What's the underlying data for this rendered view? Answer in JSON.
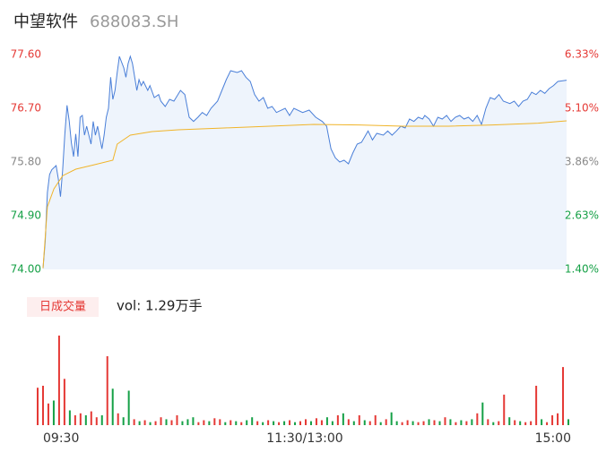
{
  "chart_data": {
    "type": "intraday",
    "title": "中望软件",
    "subtitle": "688083.SH",
    "xlim": [
      0,
      240
    ],
    "xticks": [
      {
        "value": 0,
        "label": "09:30"
      },
      {
        "value": 120,
        "label": "11:30/13:00"
      },
      {
        "value": 240,
        "label": "15:00"
      }
    ],
    "ylim": [
      74.0,
      77.6
    ],
    "yticks": [
      {
        "value": 74.0,
        "label": "74.00"
      },
      {
        "value": 74.9,
        "label": "74.90"
      },
      {
        "value": 75.8,
        "label": "75.80"
      },
      {
        "value": 76.7,
        "label": "76.70"
      },
      {
        "value": 77.6,
        "label": "77.60"
      }
    ],
    "y2lim": [
      1.4,
      6.33
    ],
    "y2ticks": [
      {
        "value": 1.4,
        "label": "1.40%"
      },
      {
        "value": 2.63,
        "label": "2.63%"
      },
      {
        "value": 3.86,
        "label": "3.86%"
      },
      {
        "value": 5.1,
        "label": "5.10%"
      },
      {
        "value": 6.33,
        "label": "6.33%"
      }
    ],
    "up_color": "#e53935",
    "down_color": "#15a046",
    "flat_color": "#888888",
    "series": [
      {
        "color": "#4a7fd8",
        "x": [
          0,
          1,
          2,
          3,
          4,
          6,
          7,
          8,
          9,
          10,
          11,
          12,
          13,
          14,
          15,
          16,
          17,
          18,
          19,
          20,
          22,
          23,
          24,
          25,
          27,
          28,
          29,
          30,
          31,
          32,
          33,
          34,
          35,
          37,
          38,
          39,
          40,
          41,
          43,
          44,
          45,
          46,
          48,
          49,
          51,
          53,
          54,
          56,
          58,
          60,
          63,
          65,
          67,
          69,
          71,
          73,
          75,
          77,
          80,
          82,
          84,
          86,
          89,
          91,
          93,
          95,
          97,
          99,
          101,
          103,
          105,
          107,
          111,
          113,
          115,
          119,
          122,
          125,
          128,
          130,
          132,
          134,
          136,
          138,
          140,
          142,
          144,
          146,
          149,
          151,
          153,
          156,
          158,
          160,
          162,
          164,
          166,
          168,
          170,
          172,
          174,
          175,
          177,
          179,
          181,
          183,
          185,
          187,
          189,
          191,
          193,
          195,
          197,
          199,
          201,
          203,
          205,
          207,
          209,
          211,
          214,
          216,
          218,
          220,
          222,
          224,
          226,
          228,
          230,
          232,
          234,
          236,
          240
        ],
        "values": [
          74.02,
          74.47,
          75.29,
          75.59,
          75.67,
          75.74,
          75.52,
          75.22,
          75.67,
          76.27,
          76.75,
          76.49,
          76.12,
          75.89,
          76.27,
          75.89,
          76.55,
          76.58,
          76.25,
          76.4,
          76.1,
          76.48,
          76.25,
          76.4,
          76.02,
          76.25,
          76.55,
          76.7,
          77.22,
          76.85,
          77.0,
          77.3,
          77.57,
          77.38,
          77.22,
          77.45,
          77.57,
          77.45,
          77.0,
          77.18,
          77.08,
          77.15,
          77.0,
          77.08,
          76.88,
          76.93,
          76.82,
          76.73,
          76.85,
          76.82,
          77.0,
          76.93,
          76.55,
          76.48,
          76.55,
          76.63,
          76.58,
          76.7,
          76.82,
          77.0,
          77.18,
          77.33,
          77.3,
          77.33,
          77.22,
          77.15,
          76.93,
          76.82,
          76.88,
          76.7,
          76.73,
          76.63,
          76.7,
          76.58,
          76.7,
          76.63,
          76.67,
          76.55,
          76.48,
          76.4,
          76.02,
          75.87,
          75.8,
          75.83,
          75.77,
          75.95,
          76.1,
          76.13,
          76.32,
          76.17,
          76.28,
          76.25,
          76.32,
          76.25,
          76.32,
          76.4,
          76.37,
          76.52,
          76.48,
          76.55,
          76.52,
          76.58,
          76.52,
          76.4,
          76.55,
          76.52,
          76.58,
          76.48,
          76.55,
          76.58,
          76.52,
          76.55,
          76.48,
          76.58,
          76.43,
          76.7,
          76.88,
          76.85,
          76.93,
          76.82,
          76.78,
          76.82,
          76.73,
          76.82,
          76.85,
          76.97,
          76.93,
          77.0,
          76.95,
          77.03,
          77.08,
          77.15,
          77.17
        ]
      },
      {
        "color": "#f0b429",
        "x": [
          0,
          2,
          5,
          9,
          15,
          23,
          32,
          34,
          40,
          50,
          62,
          83,
          104,
          124,
          145,
          165,
          186,
          206,
          227,
          240
        ],
        "values": [
          74.02,
          75.05,
          75.35,
          75.57,
          75.68,
          75.75,
          75.83,
          76.1,
          76.25,
          76.31,
          76.34,
          76.37,
          76.4,
          76.43,
          76.42,
          76.4,
          76.4,
          76.42,
          76.45,
          76.49
        ]
      }
    ],
    "volume_title": "日成交量",
    "volume_label": "vol: 1.29万手",
    "volume_ylim": [
      0,
      100
    ],
    "volume": [
      38,
      40,
      22,
      25,
      91,
      47,
      15,
      10,
      12,
      10,
      14,
      8,
      10,
      70,
      37,
      12,
      8,
      35,
      6,
      4,
      5,
      3,
      4,
      8,
      6,
      5,
      10,
      4,
      6,
      8,
      3,
      5,
      4,
      7,
      6,
      3,
      5,
      4,
      3,
      5,
      8,
      4,
      3,
      5,
      4,
      3,
      4,
      5,
      3,
      4,
      6,
      4,
      7,
      5,
      8,
      4,
      10,
      12,
      6,
      4,
      10,
      5,
      4,
      10,
      3,
      6,
      13,
      4,
      3,
      5,
      4,
      3,
      4,
      6,
      5,
      4,
      8,
      6,
      3,
      5,
      4,
      6,
      12,
      23,
      6,
      3,
      4,
      31,
      8,
      5,
      4,
      3,
      4,
      40,
      6,
      3,
      10,
      12,
      59,
      6
    ],
    "volume_up": [
      true,
      true,
      true,
      false,
      true,
      true,
      false,
      true,
      true,
      false,
      true,
      true,
      false,
      true,
      false,
      true,
      false,
      false,
      true,
      false,
      true,
      false,
      true,
      true,
      false,
      true,
      true,
      false,
      false,
      false,
      true,
      true,
      false,
      true,
      true,
      false,
      true,
      false,
      true,
      false,
      false,
      true,
      false,
      true,
      false,
      true,
      false,
      true,
      false,
      true,
      true,
      false,
      true,
      true,
      false,
      false,
      true,
      false,
      true,
      false,
      true,
      false,
      true,
      true,
      false,
      true,
      false,
      false,
      true,
      true,
      false,
      true,
      true,
      false,
      true,
      false,
      true,
      false,
      true,
      false,
      true,
      false,
      true,
      false,
      true,
      false,
      true,
      true,
      false,
      true,
      false,
      true,
      true,
      true,
      false,
      true,
      true,
      true,
      true,
      false
    ]
  }
}
